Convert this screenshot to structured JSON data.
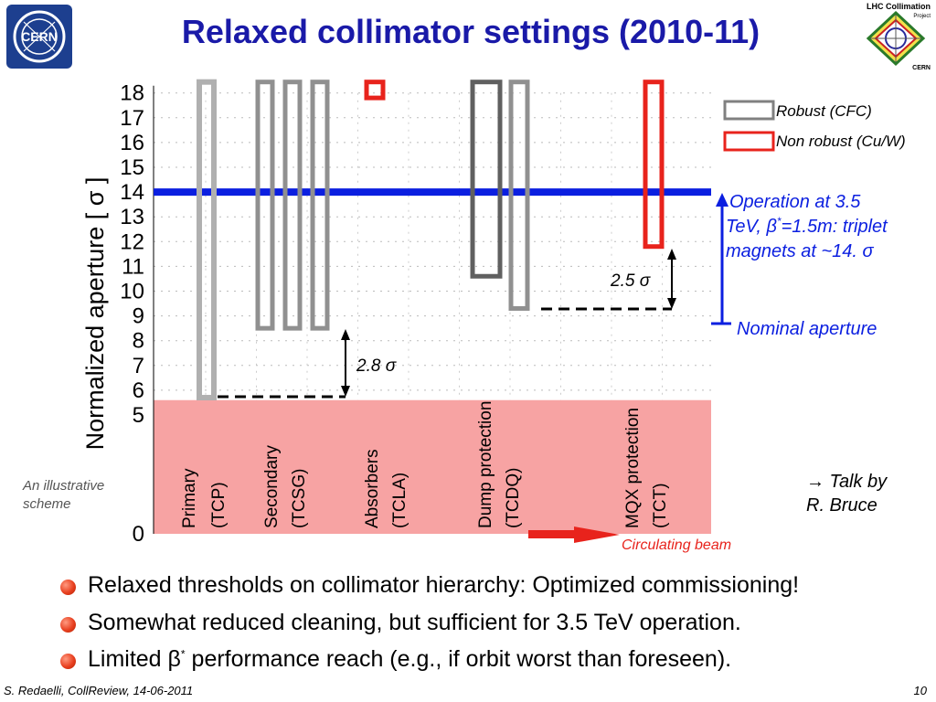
{
  "slide": {
    "title": "Relaxed collimator settings (2010-11)",
    "logos": {
      "left": "CERN",
      "right_top": "LHC Collimation",
      "right_sub": "Project",
      "right_bottom": "CERN"
    },
    "footer": "S. Redaelli, CollReview, 14-06-2011",
    "page_number": "10",
    "bullets": [
      {
        "text": "Relaxed thresholds on collimator hierarchy: Optimized commissioning!"
      },
      {
        "text": "Somewhat reduced cleaning, but sufficient for 3.5 TeV operation."
      },
      {
        "text_before": "Limited β",
        "sup": "*",
        "text_after": " performance reach (e.g., if orbit worst than foreseen)."
      }
    ]
  },
  "chart_data": {
    "type": "bar",
    "ylabel": "Normalized aperture [ σ ]",
    "ylim": [
      0,
      18
    ],
    "yticks": [
      "0",
      "5",
      "6",
      "7",
      "8",
      "9",
      "10",
      "11",
      "12",
      "13",
      "14",
      "15",
      "16",
      "17",
      "18"
    ],
    "grid": true,
    "categories": [
      {
        "line1": "Primary",
        "line2": "(TCP)"
      },
      {
        "line1": "Secondary",
        "line2": "(TCSG)"
      },
      {
        "line1": "Absorbers",
        "line2": "(TCLA)"
      },
      {
        "line1": "Dump protection",
        "line2": "(TCDQ)"
      },
      {
        "line1": "MQX protection",
        "line2": "(TCT)"
      }
    ],
    "collimators": [
      {
        "category": "Primary (TCP)",
        "type": "Robust (CFC)",
        "opening": 5.7
      },
      {
        "category": "Secondary (TCSG)",
        "type": "Robust (CFC)",
        "opening": 8.5
      },
      {
        "category": "Secondary (TCSG)",
        "type": "Robust (CFC)",
        "opening": 8.5
      },
      {
        "category": "Secondary (TCSG)",
        "type": "Robust (CFC)",
        "opening": 8.5
      },
      {
        "category": "Absorbers (TCLA)",
        "type": "Non robust (Cu/W)",
        "opening": 17.8
      },
      {
        "category": "Dump protection (TCDQ)",
        "type": "Robust (CFC)",
        "opening": 10.6
      },
      {
        "category": "Dump protection (TCDQ)",
        "type": "Robust (CFC)",
        "opening": 9.3
      },
      {
        "category": "MQX protection (TCT)",
        "type": "Non robust (Cu/W)",
        "opening": 11.8
      }
    ],
    "legend": [
      {
        "label": "Robust (CFC)",
        "color": "#808080"
      },
      {
        "label": "Non robust (Cu/W)",
        "color": "#e8231c"
      }
    ],
    "operation_line": {
      "value": 14,
      "color": "#0b1fe0"
    },
    "beam_region": {
      "from": 0,
      "to": 5.6,
      "color": "#f7a3a3"
    },
    "annotations": {
      "operation": [
        "Operation at 3.5",
        "TeV, β",
        "*",
        "=1.5m: triplet",
        "magnets at ~14. σ"
      ],
      "nominal": "Nominal aperture",
      "gap_primary_secondary": "2.8 σ",
      "gap_dump_tct": "2.5 σ",
      "circulating_beam": "Circulating beam",
      "illustrative": [
        "An illustrative",
        "scheme"
      ],
      "talk": [
        "→ Talk by",
        "R. Bruce"
      ]
    }
  }
}
